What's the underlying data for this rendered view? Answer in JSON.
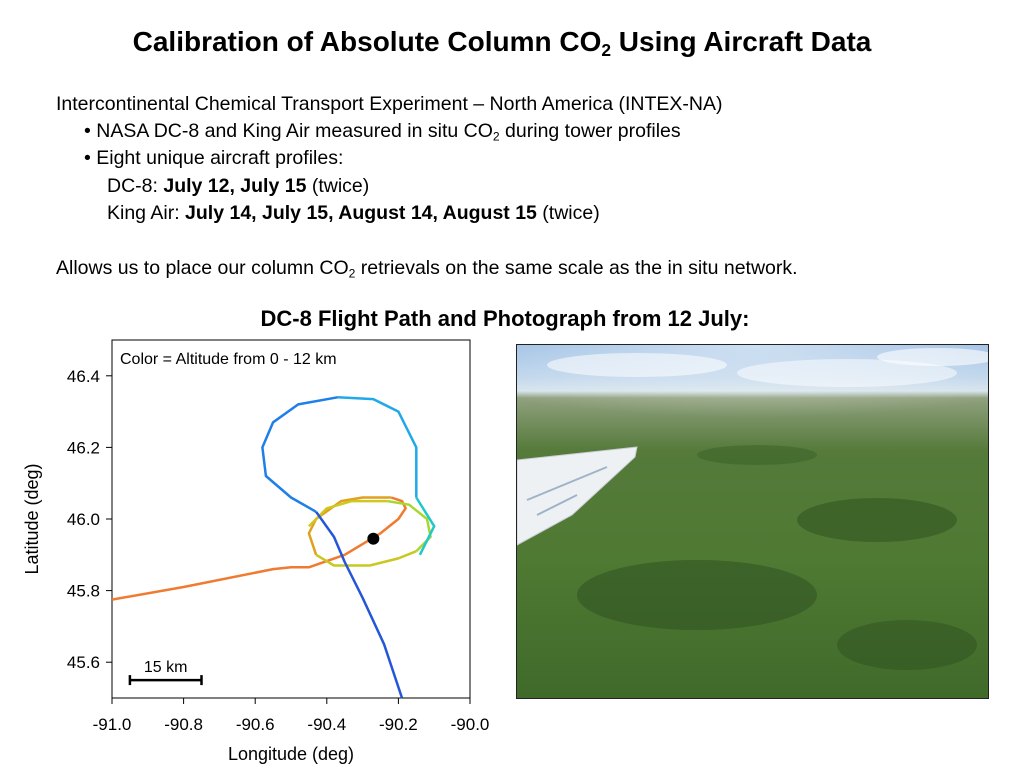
{
  "slide": {
    "title_main": "Calibration of Absolute Column CO",
    "title_sub": "2",
    "title_rest": " Using Aircraft Data",
    "intex": "Intercontinental Chemical Transport Experiment – North America (INTEX-NA)",
    "bullet1_pre": "• NASA DC-8 and King Air measured in situ CO",
    "bullet1_sub": "2",
    "bullet1_post": " during tower profiles",
    "bullet2": "• Eight unique aircraft profiles:",
    "dc8_label": "DC-8: ",
    "dc8_dates": "July 12, July 15",
    "dc8_note": " (twice)",
    "kingair_label": "King Air: ",
    "kingair_dates": "July 14, July 15, August 14, August 15",
    "kingair_note": " (twice)",
    "allows_pre": "Allows us to place our column CO",
    "allows_sub": "2",
    "allows_post": " retrievals on the same scale as the in situ network.",
    "subtitle": "DC-8 Flight Path and Photograph from 12 July:"
  },
  "colors": {
    "tower_marker": "#000000",
    "altitude_scale": [
      "#1c3fd6",
      "#1f7fe8",
      "#20c8e0",
      "#7ed321",
      "#f0c020",
      "#f07a30"
    ]
  },
  "chart_data": {
    "type": "line",
    "annotation": "Color = Altitude from 0 - 12 km",
    "xlabel": "Longitude (deg)",
    "ylabel": "Latitude (deg)",
    "xlim": [
      -91.0,
      -90.0
    ],
    "ylim": [
      45.5,
      46.5
    ],
    "xticks": [
      "-91.0",
      "-90.8",
      "-90.6",
      "-90.4",
      "-90.2",
      "-90.0"
    ],
    "yticks": [
      "45.6",
      "45.8",
      "46.0",
      "46.2",
      "46.4"
    ],
    "scale_bar_label": "15 km",
    "scale_bar_lon": [
      -90.95,
      -90.75
    ],
    "scale_bar_lat": 45.55,
    "tower": {
      "lon": -90.27,
      "lat": 45.945
    },
    "track_segments": [
      {
        "color": "#f07a30",
        "points": [
          [
            -91.0,
            45.775
          ],
          [
            -90.8,
            45.81
          ],
          [
            -90.55,
            45.86
          ],
          [
            -90.5,
            45.865
          ],
          [
            -90.45,
            45.865
          ],
          [
            -90.35,
            45.9
          ],
          [
            -90.25,
            45.96
          ],
          [
            -90.2,
            46.0
          ],
          [
            -90.18,
            46.03
          ],
          [
            -90.19,
            46.05
          ],
          [
            -90.22,
            46.06
          ]
        ]
      },
      {
        "color": "#e0a020",
        "points": [
          [
            -90.22,
            46.06
          ],
          [
            -90.3,
            46.06
          ],
          [
            -90.36,
            46.05
          ],
          [
            -90.43,
            46.0
          ],
          [
            -90.45,
            45.96
          ],
          [
            -90.43,
            45.9
          ]
        ]
      },
      {
        "color": "#c8c820",
        "points": [
          [
            -90.43,
            45.9
          ],
          [
            -90.38,
            45.87
          ],
          [
            -90.28,
            45.87
          ],
          [
            -90.2,
            45.89
          ],
          [
            -90.15,
            45.91
          ]
        ]
      },
      {
        "color": "#a8d830",
        "points": [
          [
            -90.15,
            45.91
          ],
          [
            -90.11,
            45.95
          ],
          [
            -90.12,
            46.0
          ],
          [
            -90.17,
            46.04
          ],
          [
            -90.23,
            46.05
          ]
        ]
      },
      {
        "color": "#d0c820",
        "points": [
          [
            -90.23,
            46.05
          ],
          [
            -90.33,
            46.05
          ],
          [
            -90.4,
            46.03
          ],
          [
            -90.45,
            45.98
          ]
        ]
      },
      {
        "color": "#20c8c8",
        "points": [
          [
            -90.15,
            46.06
          ],
          [
            -90.1,
            45.98
          ],
          [
            -90.14,
            45.9
          ]
        ]
      },
      {
        "color": "#20a8e8",
        "points": [
          [
            -90.15,
            46.06
          ],
          [
            -90.15,
            46.2
          ],
          [
            -90.2,
            46.3
          ],
          [
            -90.27,
            46.335
          ],
          [
            -90.37,
            46.34
          ]
        ]
      },
      {
        "color": "#1f7fe8",
        "points": [
          [
            -90.37,
            46.34
          ],
          [
            -90.48,
            46.32
          ],
          [
            -90.55,
            46.27
          ],
          [
            -90.58,
            46.2
          ],
          [
            -90.57,
            46.12
          ],
          [
            -90.5,
            46.06
          ],
          [
            -90.43,
            46.02
          ]
        ]
      },
      {
        "color": "#2555d8",
        "points": [
          [
            -90.43,
            46.02
          ],
          [
            -90.38,
            45.95
          ],
          [
            -90.35,
            45.88
          ],
          [
            -90.3,
            45.78
          ],
          [
            -90.24,
            45.65
          ],
          [
            -90.19,
            45.5
          ]
        ]
      }
    ]
  }
}
